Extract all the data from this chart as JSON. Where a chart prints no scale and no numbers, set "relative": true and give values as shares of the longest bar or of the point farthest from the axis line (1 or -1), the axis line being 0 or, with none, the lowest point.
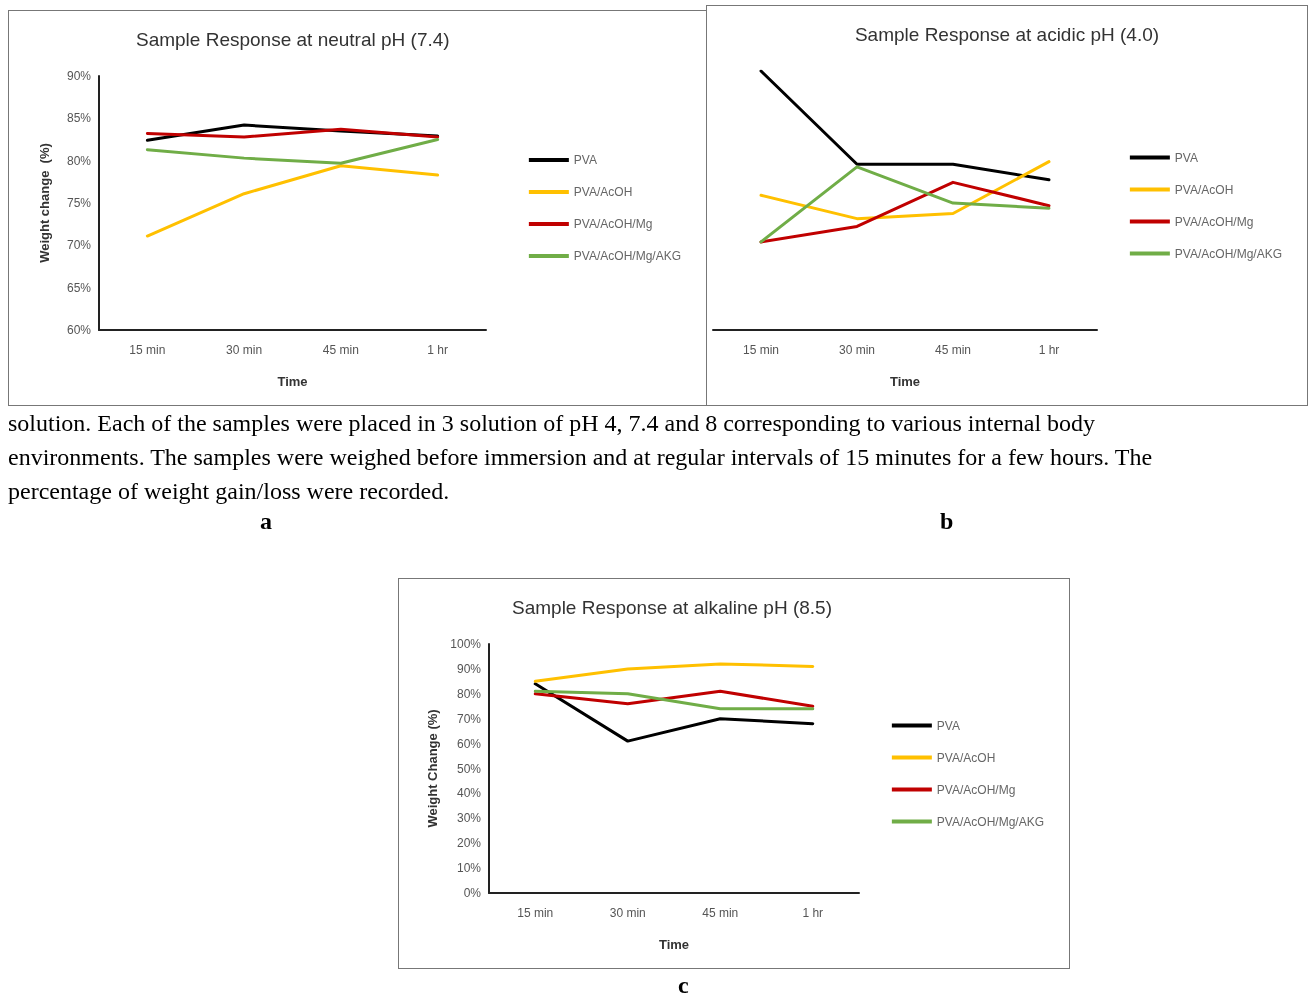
{
  "chart_data": [
    {
      "type": "line",
      "title": "Sample Response at neutral pH (7.4)",
      "xlabel": "Time",
      "ylabel": "Weight change  (%)",
      "categories": [
        "15 min",
        "30 min",
        "45 min",
        "1 hr"
      ],
      "series": [
        {
          "name": "PVA",
          "color": "#000000",
          "values": [
            82.4,
            84.2,
            83.5,
            82.9
          ]
        },
        {
          "name": "PVA/AcOH",
          "color": "#ffc000",
          "values": [
            71.1,
            76.1,
            79.4,
            78.3
          ]
        },
        {
          "name": "PVA/AcOH/Mg",
          "color": "#c00000",
          "values": [
            83.2,
            82.8,
            83.7,
            82.8
          ]
        },
        {
          "name": "PVA/AcOH/Mg/AKG",
          "color": "#70ad47",
          "values": [
            81.3,
            80.3,
            79.7,
            82.5
          ]
        }
      ],
      "ylim": [
        60,
        90
      ],
      "yticks": [
        {
          "value": 60,
          "label": "60%"
        },
        {
          "value": 65,
          "label": "65%"
        },
        {
          "value": 70,
          "label": "70%"
        },
        {
          "value": 75,
          "label": "75%"
        },
        {
          "value": 80,
          "label": "80%"
        },
        {
          "value": 85,
          "label": "85%"
        },
        {
          "value": 90,
          "label": "90%"
        }
      ],
      "grid": false,
      "legend": "right",
      "marker": "none",
      "line_style": "solid",
      "annotations": [
        "solution. Each of the samples were placed in 3 solution of pH 4, 7.4 and 8 corresponding to various internal body environments. The samples were weighed before immersion and at regular intervals of 15 minutes for a few hours. The percentage of weight gain/loss were recorded.",
        "a"
      ]
    },
    {
      "type": "line",
      "title": "Sample Response at acidic pH (4.0)",
      "xlabel": "Time",
      "categories": [
        "15 min",
        "30 min",
        "45 min",
        "1 hr"
      ],
      "relative": true,
      "series": [
        {
          "name": "PVA",
          "color": "#000000",
          "values": [
            1,
            0.64,
            0.64,
            0.58
          ]
        },
        {
          "name": "PVA/AcOH",
          "color": "#ffc000",
          "values": [
            0.52,
            0.43,
            0.45,
            0.65
          ]
        },
        {
          "name": "PVA/AcOH/Mg",
          "color": "#c00000",
          "values": [
            0.34,
            0.4,
            0.57,
            0.48
          ]
        },
        {
          "name": "PVA/AcOH/Mg/AKG",
          "color": "#70ad47",
          "values": [
            0.34,
            0.63,
            0.49,
            0.47
          ]
        }
      ],
      "grid": false,
      "legend": "right",
      "marker": "none",
      "line_style": "solid",
      "annotations": [
        "b"
      ]
    },
    {
      "type": "line",
      "title": "Sample Response at alkaline pH (8.5)",
      "xlabel": "Time",
      "ylabel": "Weight Change (%)",
      "categories": [
        "15 min",
        "30 min",
        "45 min",
        "1 hr"
      ],
      "series": [
        {
          "name": "PVA",
          "color": "#000000",
          "values": [
            84,
            61,
            70,
            68
          ]
        },
        {
          "name": "PVA/AcOH",
          "color": "#ffc000",
          "values": [
            85,
            90,
            92,
            91
          ]
        },
        {
          "name": "PVA/AcOH/Mg",
          "color": "#c00000",
          "values": [
            80,
            76,
            81,
            75
          ]
        },
        {
          "name": "PVA/AcOH/Mg/AKG",
          "color": "#70ad47",
          "values": [
            81,
            80,
            74,
            74
          ]
        }
      ],
      "ylim": [
        0,
        100
      ],
      "yticks": [
        {
          "value": 0,
          "label": "0%"
        },
        {
          "value": 10,
          "label": "10%"
        },
        {
          "value": 20,
          "label": "20%"
        },
        {
          "value": 30,
          "label": "30%"
        },
        {
          "value": 40,
          "label": "40%"
        },
        {
          "value": 50,
          "label": "50%"
        },
        {
          "value": 60,
          "label": "60%"
        },
        {
          "value": 70,
          "label": "70%"
        },
        {
          "value": 80,
          "label": "80%"
        },
        {
          "value": 90,
          "label": "90%"
        },
        {
          "value": 100,
          "label": "100%"
        }
      ],
      "grid": false,
      "legend": "right",
      "marker": "none",
      "line_style": "solid",
      "annotations": [
        "c"
      ]
    }
  ]
}
